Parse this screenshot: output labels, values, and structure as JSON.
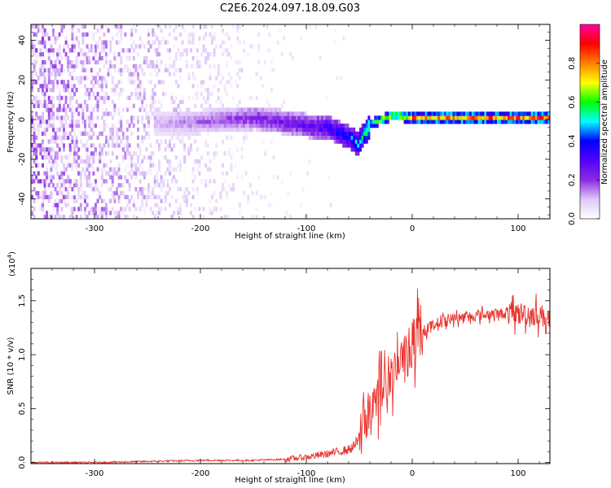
{
  "title": "C2E6.2024.097.18.09.G03",
  "chart_data": [
    {
      "type": "heatmap",
      "name": "spectrogram",
      "xlabel": "Height of straight line (km)",
      "ylabel": "Frequency (Hz)",
      "xlim": [
        -360,
        130
      ],
      "ylim": [
        -50,
        48
      ],
      "xticks": [
        -300,
        -200,
        -100,
        0,
        100
      ],
      "yticks": [
        -40,
        -20,
        0,
        20,
        40
      ],
      "colorbar": {
        "label": "Normalized spectral amplitude",
        "range": [
          0,
          1
        ],
        "ticks": [
          0.0,
          0.2,
          0.4,
          0.6,
          0.8
        ],
        "tick_labels": [
          "0.0",
          "0.2",
          "0.4",
          "0.6",
          "0.8"
        ],
        "colormap": [
          "#ffffff",
          "#e0c8f8",
          "#8a2be2",
          "#5500ff",
          "#0000ff",
          "#00ffff",
          "#00ff00",
          "#ffff00",
          "#ff8000",
          "#ff0000",
          "#ff00a0"
        ]
      },
      "features": {
        "noise_region_x": [
          -360,
          -120
        ],
        "noise_amplitude": 0.1,
        "signal_start_x": -245,
        "signal_track": {
          "x": [
            -245,
            -200,
            -150,
            -100,
            -80,
            -60,
            -52,
            -40,
            -20,
            0,
            20,
            60,
            130
          ],
          "freq": [
            -3,
            -2,
            0,
            -4,
            -5,
            -10,
            -13,
            -3,
            1,
            0,
            0,
            0,
            0
          ]
        },
        "signal_amplitude": {
          "x": [
            -245,
            -100,
            -60,
            -40,
            0,
            130
          ],
          "amp": [
            0.12,
            0.3,
            0.45,
            0.7,
            0.85,
            0.9
          ]
        }
      }
    },
    {
      "type": "line",
      "name": "snr",
      "xlabel": "Height of straight line (km)",
      "ylabel": "SNR (10 * v/v)",
      "scale_label": "(x10",
      "scale_exponent": "4",
      "scale_suffix": ")",
      "xlim": [
        -360,
        130
      ],
      "ylim": [
        -0.01,
        1.8
      ],
      "xticks": [
        -300,
        -200,
        -100,
        0,
        100
      ],
      "yticks": [
        0.0,
        0.5,
        1.0,
        1.5
      ],
      "ytick_labels": [
        "0.0",
        "0.5",
        "1.0",
        "1.5"
      ],
      "color": "#e8302a",
      "series": [
        {
          "name": "SNR",
          "x": [
            -360,
            -300,
            -250,
            -200,
            -150,
            -120,
            -100,
            -80,
            -70,
            -60,
            -55,
            -50,
            -45,
            -40,
            -35,
            -30,
            -25,
            -20,
            -15,
            -10,
            -5,
            0,
            5,
            10,
            15,
            20,
            30,
            40,
            50,
            60,
            70,
            80,
            90,
            100,
            110,
            120,
            125,
            130
          ],
          "values": [
            0.0,
            0.0,
            0.01,
            0.02,
            0.02,
            0.03,
            0.05,
            0.08,
            0.1,
            0.12,
            0.15,
            0.22,
            0.35,
            0.55,
            0.58,
            0.65,
            0.72,
            0.82,
            0.9,
            0.95,
            0.98,
            1.1,
            1.15,
            1.2,
            1.25,
            1.28,
            1.32,
            1.34,
            1.35,
            1.36,
            1.37,
            1.38,
            1.38,
            1.38,
            1.38,
            1.37,
            1.35,
            1.33
          ]
        }
      ]
    }
  ]
}
